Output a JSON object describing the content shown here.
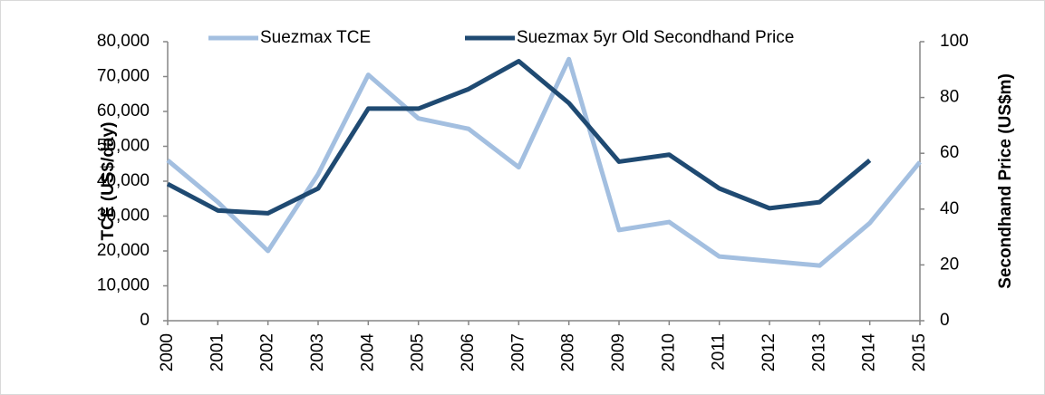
{
  "chart_data": {
    "type": "line",
    "categories": [
      "2000",
      "2001",
      "2002",
      "2003",
      "2004",
      "2005",
      "2006",
      "2007",
      "2008",
      "2009",
      "2010",
      "2011",
      "2012",
      "2013",
      "2014",
      "2015"
    ],
    "series": [
      {
        "name": "Suezmax TCE",
        "color": "#a3bfe0",
        "values": [
          46000,
          34000,
          20000,
          42000,
          70500,
          58000,
          55000,
          44000,
          75000,
          26000,
          28300,
          18400,
          17100,
          15800,
          28000,
          45500
        ]
      },
      {
        "name": "Suezmax 5yr Old Secondhand Price",
        "color": "#1f4a72",
        "axis": "y2",
        "values": [
          49,
          39.5,
          38.5,
          47.4,
          76,
          76,
          83,
          93,
          78,
          57,
          59.5,
          47.4,
          40.3,
          42.5,
          57.5,
          null
        ]
      }
    ],
    "ylabel": "TCE (US$/day)",
    "y2label": "Secondhand Price (US$m)",
    "ylim": [
      0,
      80000
    ],
    "yticks": [
      0,
      {
        "value": 10000,
        "label": "10,000"
      },
      {
        "value": 20000,
        "label": "20,000"
      },
      {
        "value": 30000,
        "label": "30,000"
      },
      {
        "value": 40000,
        "label": "40,000"
      },
      {
        "value": 50000,
        "label": "50,000"
      },
      {
        "value": 60000,
        "label": "60,000"
      },
      {
        "value": 70000,
        "label": "70,000"
      },
      {
        "value": 80000,
        "label": "80,000"
      }
    ],
    "y2lim": [
      0,
      100
    ],
    "y2ticks": [
      0,
      20,
      40,
      60,
      80,
      100
    ],
    "legend": "top"
  }
}
